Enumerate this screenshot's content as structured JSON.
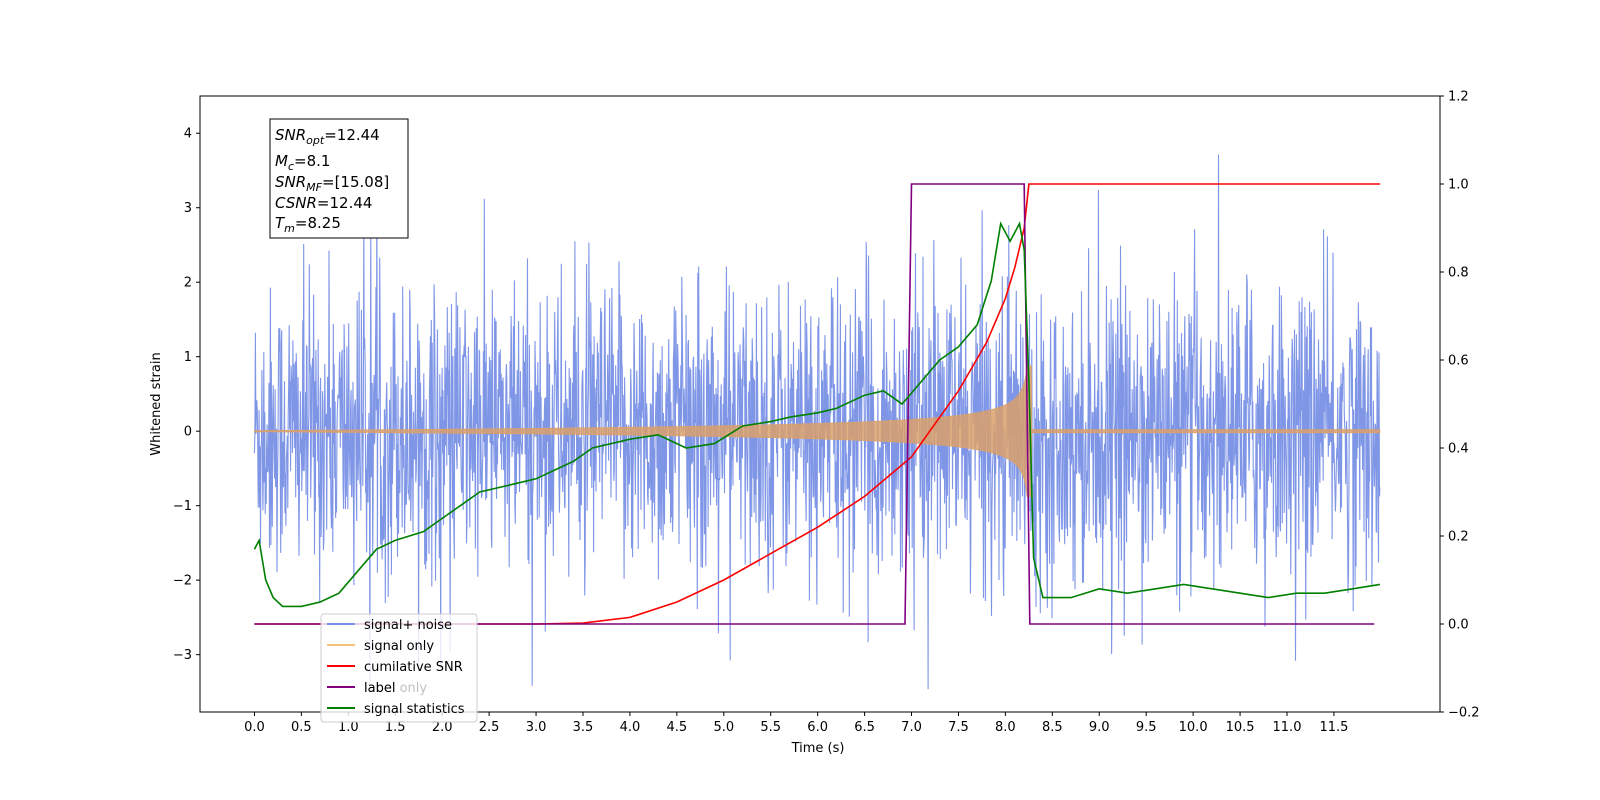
{
  "chart_data": {
    "type": "line",
    "xlabel": "Time (s)",
    "ylabel": "Whitened strain",
    "xlim": [
      -0.58,
      12.63
    ],
    "ylim": [
      -3.77,
      4.5
    ],
    "y2lim": [
      -0.2,
      1.2
    ],
    "xticks": [
      "0.0",
      "0.5",
      "1.0",
      "1.5",
      "2.0",
      "2.5",
      "3.0",
      "3.5",
      "4.0",
      "4.5",
      "5.0",
      "5.5",
      "6.0",
      "6.5",
      "7.0",
      "7.5",
      "8.0",
      "8.5",
      "9.0",
      "9.5",
      "10.0",
      "10.5",
      "11.0",
      "11.5"
    ],
    "yticks": [
      "−3",
      "−2",
      "−1",
      "0",
      "1",
      "2",
      "3",
      "4"
    ],
    "y2ticks": [
      "−0.2",
      "0.0",
      "0.2",
      "0.4",
      "0.6",
      "0.8",
      "1.0",
      "1.2"
    ],
    "legend_position": "lower-left",
    "grid": false,
    "colors": {
      "noise": "#7890e6",
      "signal": "#d9a06b",
      "cumulative": "#ff0000",
      "label": "#800080",
      "stats": "#008000"
    },
    "series": [
      {
        "name": "signal+ noise",
        "axis": "left",
        "kind": "noisy strain, roughly ±2.5 with spikes to 4.1",
        "x_range": [
          0.0,
          11.99
        ]
      },
      {
        "name": "signal only",
        "axis": "left",
        "kind": "chirp, amplitude growing to ~1.25 at merger",
        "x_range": [
          0.0,
          11.99
        ],
        "merger_time": 8.25
      },
      {
        "name": "cumilative SNR",
        "axis": "right",
        "x": [
          0.0,
          3.0,
          3.5,
          4.0,
          4.5,
          5.0,
          5.5,
          6.0,
          6.5,
          7.0,
          7.5,
          7.8,
          8.0,
          8.1,
          8.2,
          8.25,
          11.99
        ],
        "values": [
          0.0,
          0.0,
          0.002,
          0.015,
          0.05,
          0.1,
          0.16,
          0.22,
          0.29,
          0.38,
          0.53,
          0.64,
          0.74,
          0.81,
          0.9,
          1.0,
          1.0
        ]
      },
      {
        "name": "label",
        "axis": "right",
        "x": [
          0.0,
          6.93,
          7.0,
          8.2,
          8.26,
          11.93
        ],
        "values": [
          0.0,
          0.0,
          1.0,
          1.0,
          0.0,
          0.0
        ]
      },
      {
        "name": "label only",
        "axis": "right",
        "hidden_in_plot": true
      },
      {
        "name": "signal statistics",
        "axis": "right",
        "x": [
          0.0,
          0.05,
          0.12,
          0.2,
          0.3,
          0.4,
          0.5,
          0.7,
          0.9,
          1.1,
          1.3,
          1.5,
          1.8,
          2.0,
          2.2,
          2.4,
          2.6,
          2.8,
          3.0,
          3.2,
          3.4,
          3.6,
          3.8,
          4.0,
          4.3,
          4.6,
          4.9,
          5.2,
          5.5,
          5.7,
          6.0,
          6.2,
          6.5,
          6.7,
          6.9,
          7.1,
          7.3,
          7.5,
          7.7,
          7.85,
          7.95,
          8.05,
          8.15,
          8.2,
          8.25,
          8.3,
          8.4,
          8.7,
          9.0,
          9.3,
          9.6,
          9.9,
          10.2,
          10.5,
          10.8,
          11.1,
          11.4,
          11.7,
          11.99
        ],
        "values": [
          0.17,
          0.19,
          0.1,
          0.06,
          0.04,
          0.04,
          0.04,
          0.05,
          0.07,
          0.12,
          0.17,
          0.19,
          0.21,
          0.24,
          0.27,
          0.3,
          0.31,
          0.32,
          0.33,
          0.35,
          0.37,
          0.4,
          0.41,
          0.42,
          0.43,
          0.4,
          0.41,
          0.45,
          0.46,
          0.47,
          0.48,
          0.49,
          0.52,
          0.53,
          0.5,
          0.55,
          0.6,
          0.63,
          0.68,
          0.78,
          0.91,
          0.87,
          0.91,
          0.85,
          0.55,
          0.15,
          0.06,
          0.06,
          0.08,
          0.07,
          0.08,
          0.09,
          0.08,
          0.07,
          0.06,
          0.07,
          0.07,
          0.08,
          0.09
        ]
      }
    ],
    "legend_entries": [
      "signal+ noise",
      "signal only",
      "cumilative SNR",
      "label",
      "label only",
      "signal statistics"
    ],
    "info_box": {
      "snr_opt_main": "SNR",
      "snr_opt_sub": "opt",
      "snr_opt_val": "=12.44",
      "mc_main": "M",
      "mc_sub": "c",
      "mc_val": "=8.1",
      "snr_mf_main": "SNR",
      "snr_mf_sub": "MF",
      "snr_mf_val": "=[15.08]",
      "csnr_main": "CSNR",
      "csnr_val": "=12.44",
      "tm_main": "T",
      "tm_sub": "m",
      "tm_val": "=8.25"
    }
  }
}
